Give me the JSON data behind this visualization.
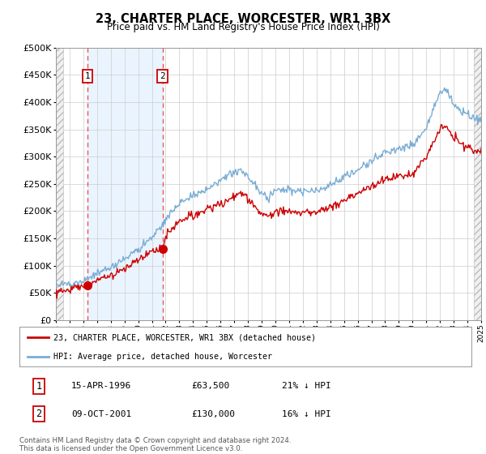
{
  "title": "23, CHARTER PLACE, WORCESTER, WR1 3BX",
  "subtitle": "Price paid vs. HM Land Registry's House Price Index (HPI)",
  "ylim": [
    0,
    500000
  ],
  "yticks": [
    0,
    50000,
    100000,
    150000,
    200000,
    250000,
    300000,
    350000,
    400000,
    450000,
    500000
  ],
  "ytick_labels": [
    "£0",
    "£50K",
    "£100K",
    "£150K",
    "£200K",
    "£250K",
    "£300K",
    "£350K",
    "£400K",
    "£450K",
    "£500K"
  ],
  "sale1_date": 1996.29,
  "sale1_price": 63500,
  "sale2_date": 2001.77,
  "sale2_price": 130000,
  "hpi_color": "#7aadd4",
  "price_color": "#cc0000",
  "vline_color": "#ee5555",
  "shade_color": "#ddeeff",
  "legend_line1": "23, CHARTER PLACE, WORCESTER, WR1 3BX (detached house)",
  "legend_line2": "HPI: Average price, detached house, Worcester",
  "table_row1": [
    "1",
    "15-APR-1996",
    "£63,500",
    "21% ↓ HPI"
  ],
  "table_row2": [
    "2",
    "09-OCT-2001",
    "£130,000",
    "16% ↓ HPI"
  ],
  "footnote": "Contains HM Land Registry data © Crown copyright and database right 2024.\nThis data is licensed under the Open Government Licence v3.0.",
  "xmin": 1994,
  "xmax": 2025
}
